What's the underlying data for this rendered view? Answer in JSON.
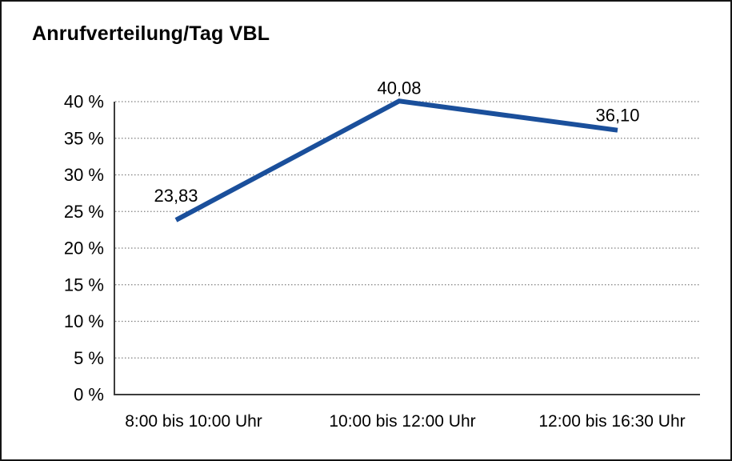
{
  "frame": {
    "background": "#ffffff",
    "border_color": "#141414"
  },
  "chart_data": {
    "type": "line",
    "title": "Anrufverteilung/Tag VBL",
    "categories": [
      "8:00 bis 10:00 Uhr",
      "10:00 bis 12:00 Uhr",
      "12:00 bis 16:30 Uhr"
    ],
    "values": [
      23.83,
      40.08,
      36.1
    ],
    "point_labels": [
      "23,83",
      "40,08",
      "36,10"
    ],
    "ytick_labels": [
      "0 %",
      "5 %",
      "10 %",
      "15 %",
      "20 %",
      "25 %",
      "30 %",
      "35 %",
      "40 %"
    ],
    "ytick_values": [
      0,
      5,
      10,
      15,
      20,
      25,
      30,
      35,
      40
    ],
    "ylim": [
      0,
      40
    ],
    "xlabel": "",
    "ylabel": "",
    "legend": "none",
    "grid": "horizontal-dotted",
    "line_color": "#1a4f9b",
    "axis_color": "#3c3c3c",
    "gridline_color": "#808080",
    "text_color": "#000000"
  }
}
